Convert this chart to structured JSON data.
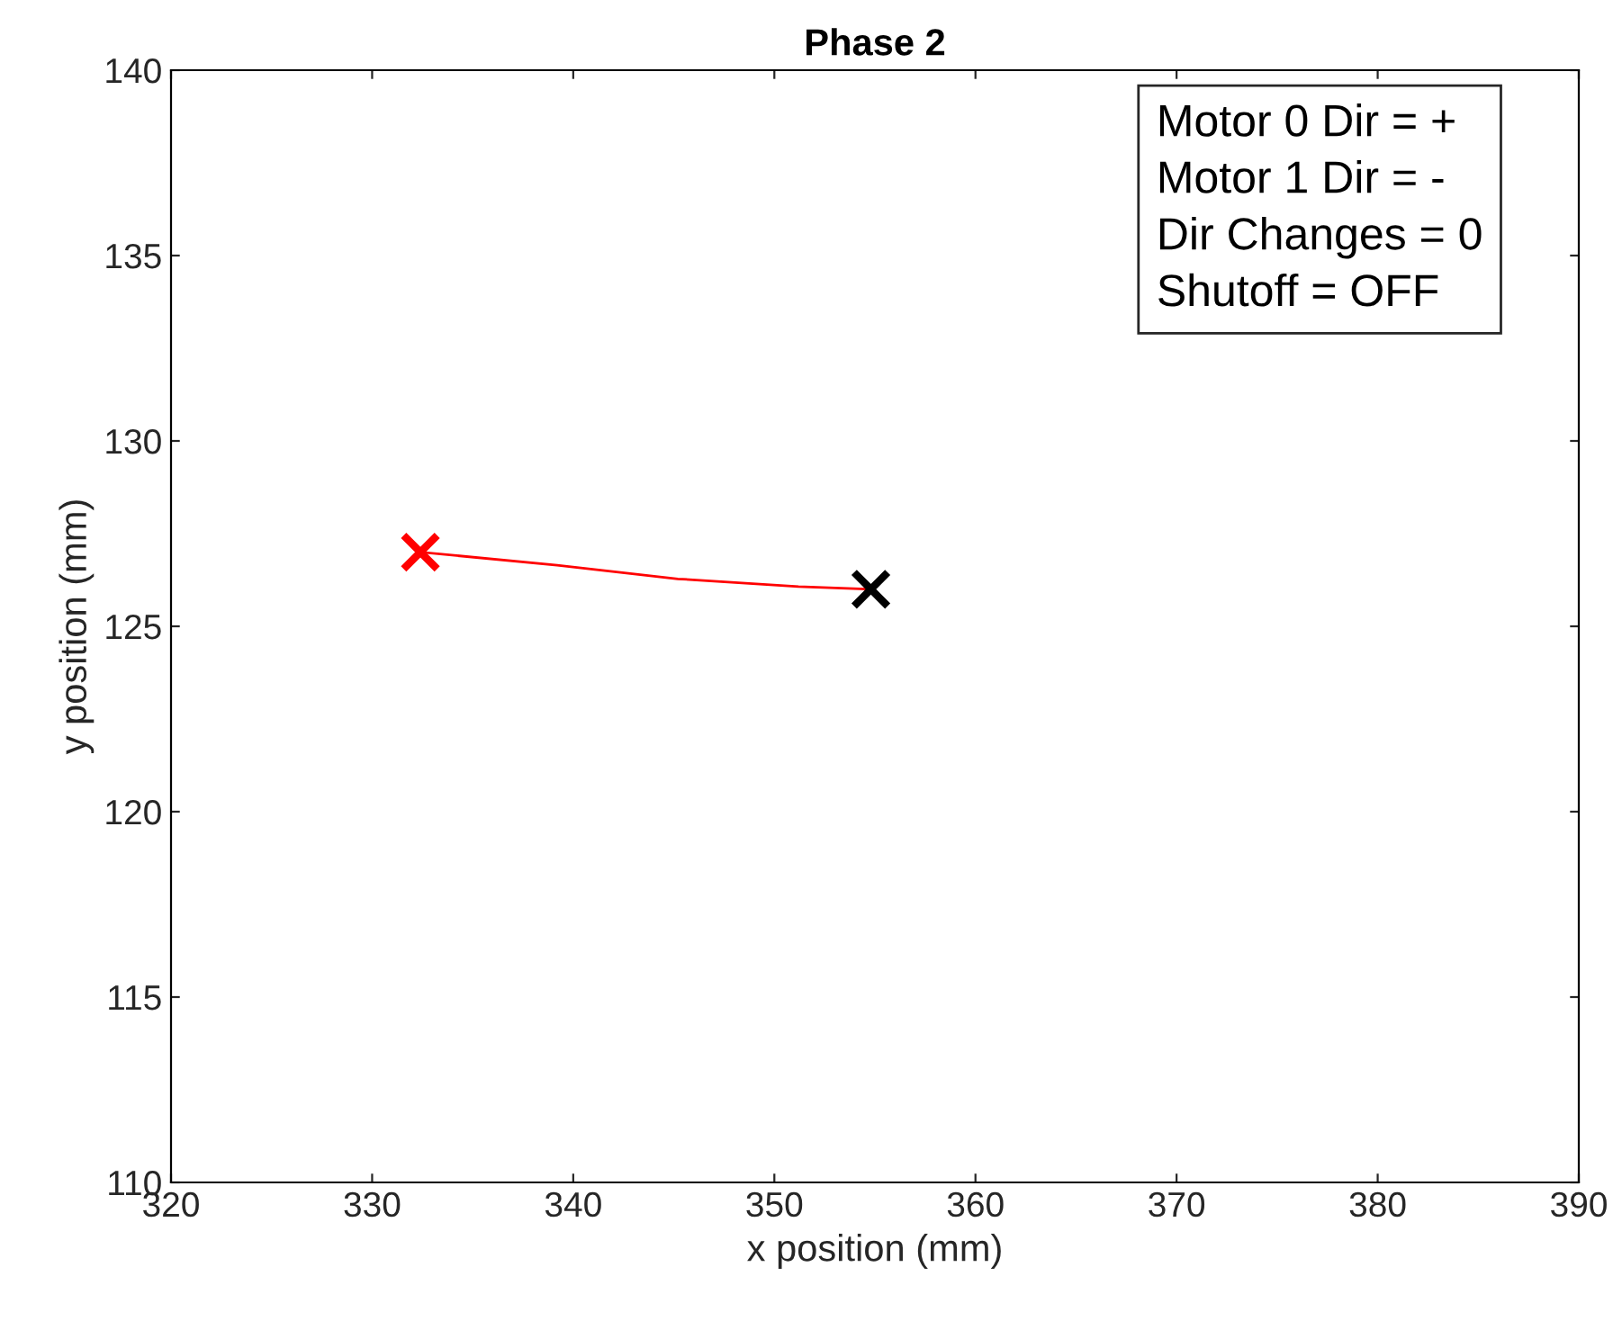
{
  "chart_data": {
    "type": "line",
    "title": "Phase 2",
    "xlabel": "x position (mm)",
    "ylabel": "y position (mm)",
    "series": [
      {
        "color": "#ff0000",
        "x": [
          332.4,
          339.2,
          345.2,
          351.2,
          354.8
        ],
        "values": [
          127.0,
          126.65,
          126.28,
          126.07,
          126.0
        ],
        "marker": "none"
      },
      {
        "type": "scatter",
        "color": "#ff0000",
        "x": [
          332.4
        ],
        "values": [
          127.0
        ],
        "marker": "cross"
      },
      {
        "type": "scatter",
        "color": "#000000",
        "x": [
          354.8
        ],
        "values": [
          126.0
        ],
        "marker": "cross"
      }
    ],
    "xlim": [
      320,
      390
    ],
    "xticks": [
      320,
      330,
      340,
      350,
      360,
      370,
      380,
      390
    ],
    "ylim": [
      110,
      140
    ],
    "yticks": [
      110,
      115,
      120,
      125,
      130,
      135,
      140
    ],
    "grid": false,
    "annotations": [
      "Motor 0 Dir = +\nMotor 1 Dir = -\nDir Changes = 0\nShutoff = OFF"
    ]
  }
}
